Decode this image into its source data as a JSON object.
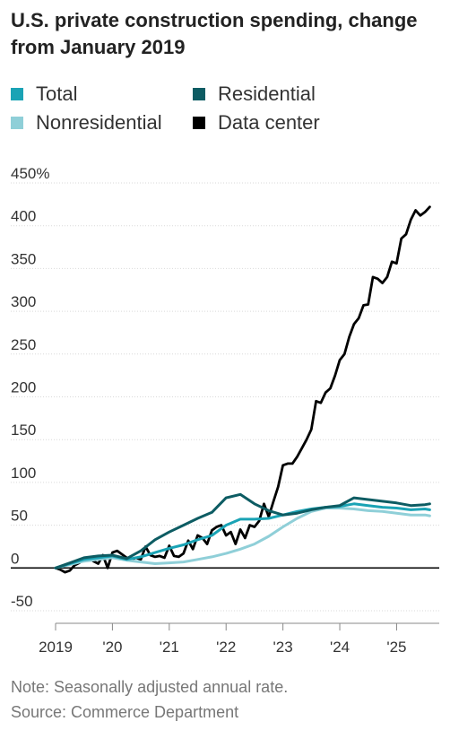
{
  "title": "U.S. private construction spending, change from January 2019",
  "legend": [
    {
      "label": "Total",
      "color": "#1aa3b5"
    },
    {
      "label": "Residential",
      "color": "#0d5c63"
    },
    {
      "label": "Nonresidential",
      "color": "#8fcfd8"
    },
    {
      "label": "Data center",
      "color": "#000000"
    }
  ],
  "footer": {
    "note": "Note: Seasonally adjusted annual rate.",
    "source": "Source: Commerce Department"
  },
  "chart_data": {
    "type": "line",
    "title": "U.S. private construction spending, change from January 2019",
    "xlabel": "",
    "ylabel": "",
    "y_unit": "%",
    "ylim": [
      -50,
      450
    ],
    "yticks": [
      -50,
      0,
      50,
      100,
      150,
      200,
      250,
      300,
      350,
      400,
      450
    ],
    "ytick_labels": [
      "-50",
      "0",
      "50",
      "100",
      "150",
      "200",
      "250",
      "300",
      "350",
      "400",
      "450%"
    ],
    "xlim": [
      "2019-01",
      "2025-10"
    ],
    "xticks": [
      "2019-01",
      "2020-01",
      "2021-01",
      "2022-01",
      "2023-01",
      "2024-01",
      "2025-01"
    ],
    "xtick_labels": [
      "2019",
      "'20",
      "'21",
      "'22",
      "'23",
      "'24",
      "'25"
    ],
    "grid": "horizontal",
    "legend_position": "top",
    "series": [
      {
        "name": "Data center",
        "color": "#000000",
        "points": [
          [
            "2019-01",
            0
          ],
          [
            "2019-02",
            -2
          ],
          [
            "2019-03",
            -5
          ],
          [
            "2019-04",
            -3
          ],
          [
            "2019-05",
            3
          ],
          [
            "2019-06",
            6
          ],
          [
            "2019-07",
            10
          ],
          [
            "2019-08",
            12
          ],
          [
            "2019-09",
            8
          ],
          [
            "2019-10",
            5
          ],
          [
            "2019-11",
            15
          ],
          [
            "2019-12",
            0
          ],
          [
            "2020-01",
            18
          ],
          [
            "2020-02",
            20
          ],
          [
            "2020-03",
            16
          ],
          [
            "2020-04",
            12
          ],
          [
            "2020-05",
            10
          ],
          [
            "2020-06",
            12
          ],
          [
            "2020-07",
            10
          ],
          [
            "2020-08",
            25
          ],
          [
            "2020-09",
            15
          ],
          [
            "2020-10",
            13
          ],
          [
            "2020-11",
            14
          ],
          [
            "2020-12",
            12
          ],
          [
            "2021-01",
            26
          ],
          [
            "2021-02",
            14
          ],
          [
            "2021-03",
            13
          ],
          [
            "2021-04",
            17
          ],
          [
            "2021-05",
            32
          ],
          [
            "2021-06",
            22
          ],
          [
            "2021-07",
            38
          ],
          [
            "2021-08",
            35
          ],
          [
            "2021-09",
            28
          ],
          [
            "2021-10",
            44
          ],
          [
            "2021-11",
            48
          ],
          [
            "2021-12",
            50
          ],
          [
            "2022-01",
            38
          ],
          [
            "2022-02",
            42
          ],
          [
            "2022-03",
            28
          ],
          [
            "2022-04",
            45
          ],
          [
            "2022-05",
            35
          ],
          [
            "2022-06",
            50
          ],
          [
            "2022-07",
            48
          ],
          [
            "2022-08",
            55
          ],
          [
            "2022-09",
            75
          ],
          [
            "2022-10",
            60
          ],
          [
            "2022-11",
            78
          ],
          [
            "2022-12",
            95
          ],
          [
            "2023-01",
            120
          ],
          [
            "2023-02",
            122
          ],
          [
            "2023-03",
            122
          ],
          [
            "2023-04",
            130
          ],
          [
            "2023-05",
            140
          ],
          [
            "2023-06",
            150
          ],
          [
            "2023-07",
            162
          ],
          [
            "2023-08",
            195
          ],
          [
            "2023-09",
            193
          ],
          [
            "2023-10",
            205
          ],
          [
            "2023-11",
            210
          ],
          [
            "2023-12",
            225
          ],
          [
            "2024-01",
            243
          ],
          [
            "2024-02",
            250
          ],
          [
            "2024-03",
            270
          ],
          [
            "2024-04",
            285
          ],
          [
            "2024-05",
            292
          ],
          [
            "2024-06",
            307
          ],
          [
            "2024-07",
            308
          ],
          [
            "2024-08",
            340
          ],
          [
            "2024-09",
            338
          ],
          [
            "2024-10",
            333
          ],
          [
            "2024-11",
            340
          ],
          [
            "2024-12",
            358
          ],
          [
            "2025-01",
            356
          ],
          [
            "2025-02",
            385
          ],
          [
            "2025-03",
            390
          ],
          [
            "2025-04",
            407
          ],
          [
            "2025-05",
            418
          ],
          [
            "2025-06",
            412
          ],
          [
            "2025-07",
            416
          ],
          [
            "2025-08",
            422
          ]
        ]
      },
      {
        "name": "Nonresidential",
        "color": "#8fcfd8",
        "points": [
          [
            "2019-01",
            0
          ],
          [
            "2019-04",
            4
          ],
          [
            "2019-07",
            8
          ],
          [
            "2019-10",
            10
          ],
          [
            "2020-01",
            12
          ],
          [
            "2020-04",
            9
          ],
          [
            "2020-07",
            7
          ],
          [
            "2020-10",
            5
          ],
          [
            "2021-01",
            6
          ],
          [
            "2021-04",
            7
          ],
          [
            "2021-07",
            10
          ],
          [
            "2021-10",
            13
          ],
          [
            "2022-01",
            17
          ],
          [
            "2022-04",
            22
          ],
          [
            "2022-07",
            28
          ],
          [
            "2022-10",
            37
          ],
          [
            "2023-01",
            48
          ],
          [
            "2023-04",
            58
          ],
          [
            "2023-07",
            66
          ],
          [
            "2023-10",
            70
          ],
          [
            "2024-01",
            70
          ],
          [
            "2024-04",
            69
          ],
          [
            "2024-07",
            67
          ],
          [
            "2024-10",
            66
          ],
          [
            "2025-01",
            64
          ],
          [
            "2025-04",
            62
          ],
          [
            "2025-07",
            62
          ],
          [
            "2025-08",
            61
          ]
        ]
      },
      {
        "name": "Total",
        "color": "#1aa3b5",
        "points": [
          [
            "2019-01",
            0
          ],
          [
            "2019-04",
            5
          ],
          [
            "2019-07",
            10
          ],
          [
            "2019-10",
            12
          ],
          [
            "2020-01",
            14
          ],
          [
            "2020-04",
            10
          ],
          [
            "2020-07",
            13
          ],
          [
            "2020-10",
            18
          ],
          [
            "2021-01",
            23
          ],
          [
            "2021-04",
            27
          ],
          [
            "2021-07",
            33
          ],
          [
            "2021-10",
            38
          ],
          [
            "2022-01",
            50
          ],
          [
            "2022-04",
            57
          ],
          [
            "2022-07",
            57
          ],
          [
            "2022-10",
            58
          ],
          [
            "2023-01",
            62
          ],
          [
            "2023-04",
            66
          ],
          [
            "2023-07",
            69
          ],
          [
            "2023-10",
            71
          ],
          [
            "2024-01",
            72
          ],
          [
            "2024-04",
            75
          ],
          [
            "2024-07",
            73
          ],
          [
            "2024-10",
            71
          ],
          [
            "2025-01",
            70
          ],
          [
            "2025-04",
            68
          ],
          [
            "2025-07",
            69
          ],
          [
            "2025-08",
            68
          ]
        ]
      },
      {
        "name": "Residential",
        "color": "#0d5c63",
        "points": [
          [
            "2019-01",
            0
          ],
          [
            "2019-04",
            6
          ],
          [
            "2019-07",
            12
          ],
          [
            "2019-10",
            14
          ],
          [
            "2020-01",
            15
          ],
          [
            "2020-04",
            11
          ],
          [
            "2020-07",
            20
          ],
          [
            "2020-10",
            33
          ],
          [
            "2021-01",
            42
          ],
          [
            "2021-04",
            50
          ],
          [
            "2021-07",
            58
          ],
          [
            "2021-10",
            65
          ],
          [
            "2022-01",
            82
          ],
          [
            "2022-04",
            86
          ],
          [
            "2022-07",
            75
          ],
          [
            "2022-10",
            67
          ],
          [
            "2023-01",
            62
          ],
          [
            "2023-04",
            64
          ],
          [
            "2023-07",
            68
          ],
          [
            "2023-10",
            71
          ],
          [
            "2024-01",
            73
          ],
          [
            "2024-04",
            82
          ],
          [
            "2024-07",
            80
          ],
          [
            "2024-10",
            78
          ],
          [
            "2025-01",
            76
          ],
          [
            "2025-04",
            73
          ],
          [
            "2025-07",
            74
          ],
          [
            "2025-08",
            75
          ]
        ]
      }
    ]
  }
}
